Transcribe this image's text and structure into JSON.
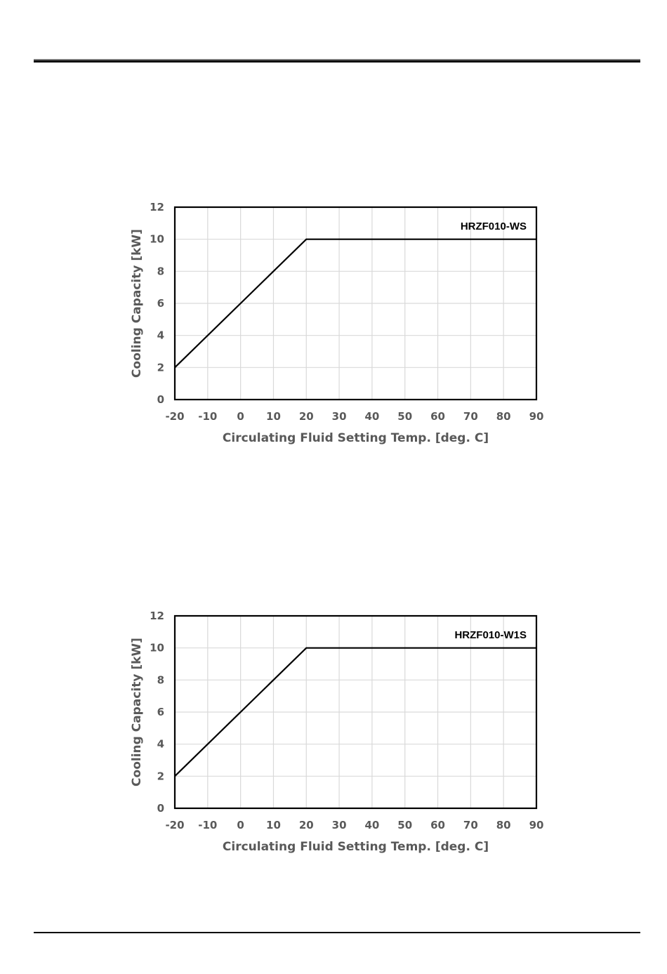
{
  "chart_data": [
    {
      "type": "line",
      "title": "",
      "annotation": "HRZF010-WS",
      "xlabel": "Circulating Fluid Setting Temp. [deg. C]",
      "ylabel": "Cooling Capacity  [kW]",
      "xlim": [
        -20,
        90
      ],
      "ylim": [
        0,
        12
      ],
      "xticks": [
        "-20",
        "-10",
        "0",
        "10",
        "20",
        "30",
        "40",
        "50",
        "60",
        "70",
        "80",
        "90"
      ],
      "yticks": [
        "0",
        "2",
        "4",
        "6",
        "8",
        "10",
        "12"
      ],
      "grid": true,
      "legend": "none",
      "series": [
        {
          "x": [
            -20,
            20,
            90
          ],
          "y": [
            2,
            10,
            10
          ]
        }
      ],
      "colors": {
        "line": "#000000",
        "grid": "#d9d9d9",
        "frame": "#000000",
        "tick": "#595959"
      }
    },
    {
      "type": "line",
      "title": "",
      "annotation": "HRZF010-W1S",
      "xlabel": "Circulating Fluid Setting Temp. [deg. C]",
      "ylabel": "Cooling Capacity  [kW]",
      "xlim": [
        -20,
        90
      ],
      "ylim": [
        0,
        12
      ],
      "xticks": [
        "-20",
        "-10",
        "0",
        "10",
        "20",
        "30",
        "40",
        "50",
        "60",
        "70",
        "80",
        "90"
      ],
      "yticks": [
        "0",
        "2",
        "4",
        "6",
        "8",
        "10",
        "12"
      ],
      "grid": true,
      "legend": "none",
      "series": [
        {
          "x": [
            -20,
            20,
            90
          ],
          "y": [
            2,
            10,
            10
          ]
        }
      ],
      "colors": {
        "line": "#000000",
        "grid": "#d9d9d9",
        "frame": "#000000",
        "tick": "#595959"
      }
    }
  ]
}
